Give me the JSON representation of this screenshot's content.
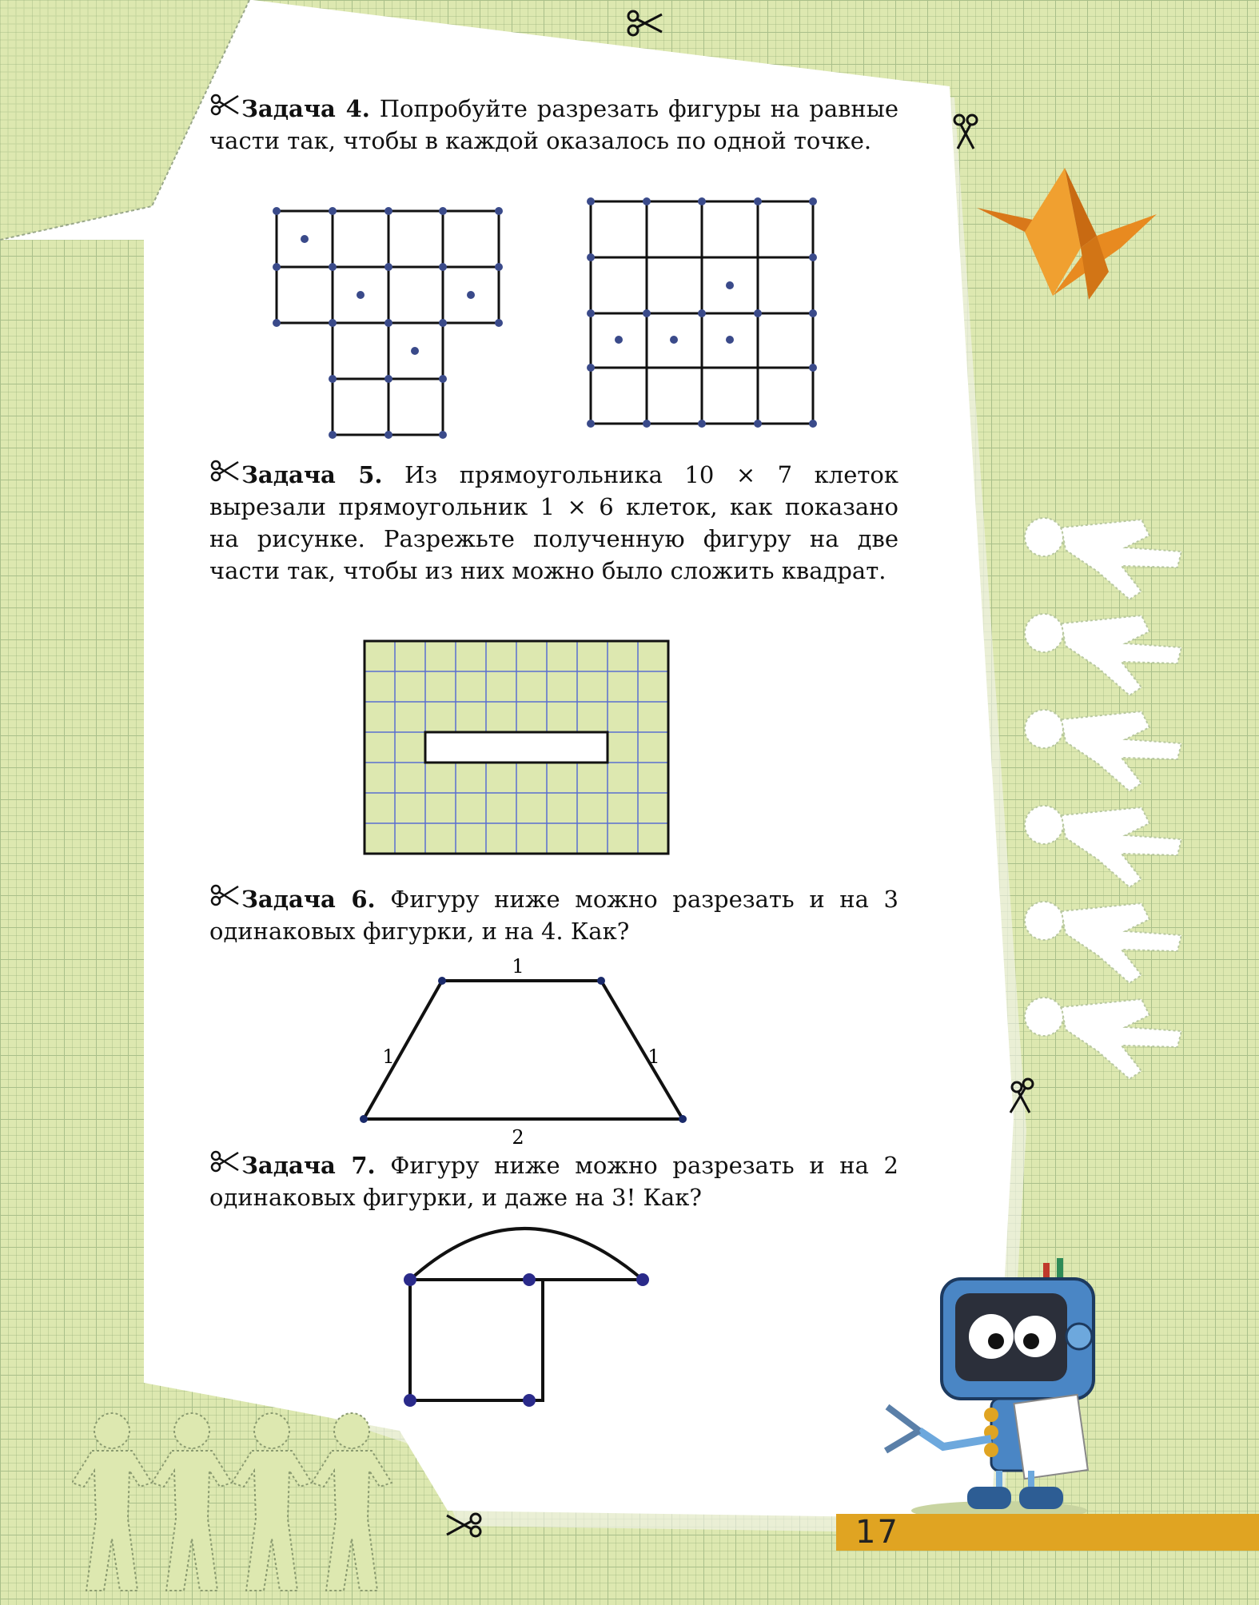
{
  "tasks": [
    {
      "title": "Задача 4.",
      "text": " Попробуйте разрезать фигуры на равные части так, чтобы в каждой оказалось по одной точке."
    },
    {
      "title": "Задача 5.",
      "text": " Из прямоугольника 10 × 7 клеток вырезали прямоугольник 1 × 6 клеток, как показано на рисунке. Разрежьте полученную фигуру на две части так, чтобы из них можно было сложить квадрат."
    },
    {
      "title": "Задача 6.",
      "text": " Фигуру ниже можно разрезать и на 3 одинаковых фигурки, и на 4. Как?"
    },
    {
      "title": "Задача 7.",
      "text": " Фигуру ниже можно разрезать и на 2 одинаковых фигурки, и даже на 3! Как?"
    }
  ],
  "trapezoid_labels": {
    "top": "1",
    "left": "1",
    "right": "1",
    "bottom": "2"
  },
  "page_number": "17",
  "colors": {
    "grid_bg": "#dde8b0",
    "accent_bar": "#e0a422",
    "dot": "#3a4a8a",
    "crane": "#e8901e"
  },
  "icons": [
    "scissors-icon",
    "paper-crane-icon",
    "robot-mascot-icon",
    "paper-doll-chain-icon"
  ]
}
